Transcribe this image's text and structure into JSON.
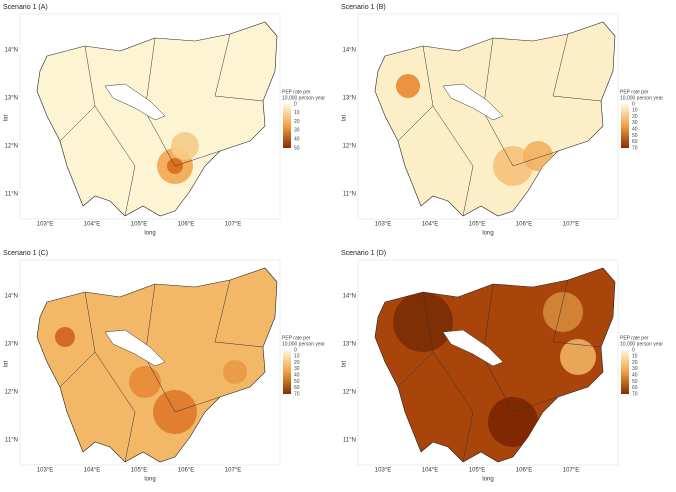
{
  "panels": [
    {
      "title": "Scenario 1 (A)",
      "legend_title": [
        "PEP rate per",
        "10,000 person year"
      ],
      "legend_ticks": [
        0,
        10,
        20,
        30,
        40,
        50
      ],
      "x_label": "long",
      "y_label": "lat",
      "x_ticks": [
        "103°E",
        "104°E",
        "105°E",
        "106°E",
        "107°E"
      ],
      "y_ticks": [
        "14°N",
        "13°N",
        "12°N",
        "11°N"
      ]
    },
    {
      "title": "Scenario 1 (B)",
      "legend_title": [
        "PEP rate per",
        "10,000 person year"
      ],
      "legend_ticks": [
        0,
        10,
        20,
        30,
        40,
        50,
        60,
        70
      ],
      "x_label": "long",
      "y_label": "lat",
      "x_ticks": [
        "103°E",
        "104°E",
        "105°E",
        "106°E",
        "107°E"
      ],
      "y_ticks": [
        "14°N",
        "13°N",
        "12°N",
        "11°N"
      ]
    },
    {
      "title": "Scenario 1 (C)",
      "legend_title": [
        "PEP rate per",
        "10,000 person year"
      ],
      "legend_ticks": [
        0,
        10,
        20,
        30,
        40,
        50,
        60,
        70
      ],
      "x_label": "long",
      "y_label": "lat",
      "x_ticks": [
        "103°E",
        "104°E",
        "105°E",
        "106°E",
        "107°E"
      ],
      "y_ticks": [
        "14°N",
        "13°N",
        "12°N",
        "11°N"
      ]
    },
    {
      "title": "Scenario 1 (D)",
      "legend_title": [
        "PEP rate per",
        "10,000 person year"
      ],
      "legend_ticks": [
        0,
        10,
        20,
        30,
        40,
        50,
        60,
        70
      ],
      "x_label": "long",
      "y_label": "lat",
      "x_ticks": [
        "103°E",
        "104°E",
        "105°E",
        "106°E",
        "107°E"
      ],
      "y_ticks": [
        "14°N",
        "13°N",
        "12°N",
        "11°N"
      ]
    }
  ]
}
